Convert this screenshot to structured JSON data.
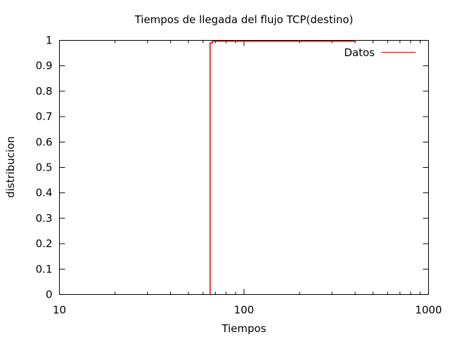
{
  "chart_data": {
    "type": "line",
    "title": "Tiempos de llegada del flujo TCP(destino)",
    "xlabel": "Tiempos",
    "ylabel": "distribucion",
    "xscale": "log",
    "xlim": [
      10,
      1000
    ],
    "ylim": [
      0,
      1
    ],
    "x_ticks": [
      {
        "value": 10,
        "label": "10"
      },
      {
        "value": 100,
        "label": "100"
      },
      {
        "value": 1000,
        "label": "1000"
      }
    ],
    "y_ticks": [
      {
        "value": 0,
        "label": "0"
      },
      {
        "value": 0.1,
        "label": "0.1"
      },
      {
        "value": 0.2,
        "label": "0.2"
      },
      {
        "value": 0.3,
        "label": "0.3"
      },
      {
        "value": 0.4,
        "label": "0.4"
      },
      {
        "value": 0.5,
        "label": "0.5"
      },
      {
        "value": 0.6,
        "label": "0.6"
      },
      {
        "value": 0.7,
        "label": "0.7"
      },
      {
        "value": 0.8,
        "label": "0.8"
      },
      {
        "value": 0.9,
        "label": "0.9"
      },
      {
        "value": 1,
        "label": "1"
      }
    ],
    "grid": false,
    "legend_position": "top-right",
    "series": [
      {
        "name": "Datos",
        "color": "#e00000",
        "step": true,
        "points": [
          {
            "x": 65.5,
            "y": 0
          },
          {
            "x": 65.5,
            "y": 0.99
          },
          {
            "x": 67.5,
            "y": 0.99
          },
          {
            "x": 67.5,
            "y": 0.997
          },
          {
            "x": 400,
            "y": 0.997
          },
          {
            "x": 400,
            "y": 1
          }
        ]
      }
    ]
  }
}
